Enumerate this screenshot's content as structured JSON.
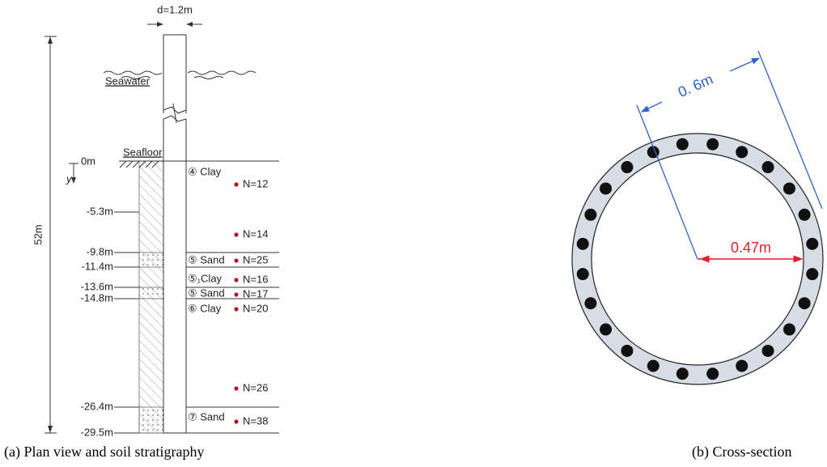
{
  "left": {
    "pile_diameter": "d=1.2m",
    "total_length": "52m",
    "seawater": "Seawater",
    "seafloor": "Seafloor",
    "y_axis": "y",
    "depths": [
      "0m",
      "-5.3m",
      "-9.8m",
      "-11.4m",
      "-13.6m",
      "-14.8m",
      "-26.4m",
      "-29.5m"
    ],
    "layers": [
      "④ Clay",
      "⑤ Sand",
      "⑤₁Clay",
      "⑤ Sand",
      "⑥ Clay",
      "⑦ Sand"
    ],
    "spt": [
      "N=12",
      "N=14",
      "N=25",
      "N=16",
      "N=17",
      "N=20",
      "N=26",
      "N=38"
    ],
    "caption": "(a) Plan view and soil stratigraphy"
  },
  "right": {
    "outer_label": "0. 6m",
    "inner_label": "0.47m",
    "caption": "(b) Cross-section"
  }
}
